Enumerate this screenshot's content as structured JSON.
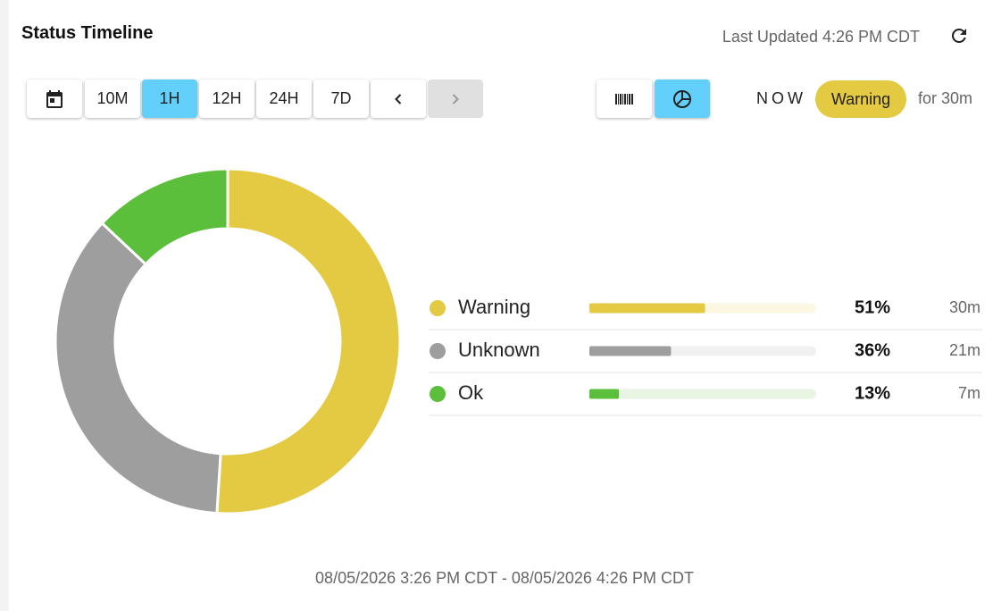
{
  "header": {
    "title": "Status Timeline",
    "last_updated": "Last Updated 4:26 PM CDT"
  },
  "toolbar": {
    "ranges": [
      "10M",
      "1H",
      "12H",
      "24H",
      "7D"
    ]
  },
  "status": {
    "now_label": "NOW",
    "state": "Warning",
    "duration": "for 30m"
  },
  "chart_data": {
    "type": "donut",
    "categories": [
      "Warning",
      "Unknown",
      "Ok"
    ],
    "values": [
      51,
      36,
      13
    ],
    "value_labels": [
      "51%",
      "36%",
      "13%"
    ],
    "duration_labels": [
      "30m",
      "21m",
      "7m"
    ],
    "colors": [
      "#e4c942",
      "#9e9e9e",
      "#5bbf3c"
    ]
  },
  "footer": {
    "date_range": "08/05/2026 3:26 PM CDT - 08/05/2026 4:26 PM CDT"
  }
}
